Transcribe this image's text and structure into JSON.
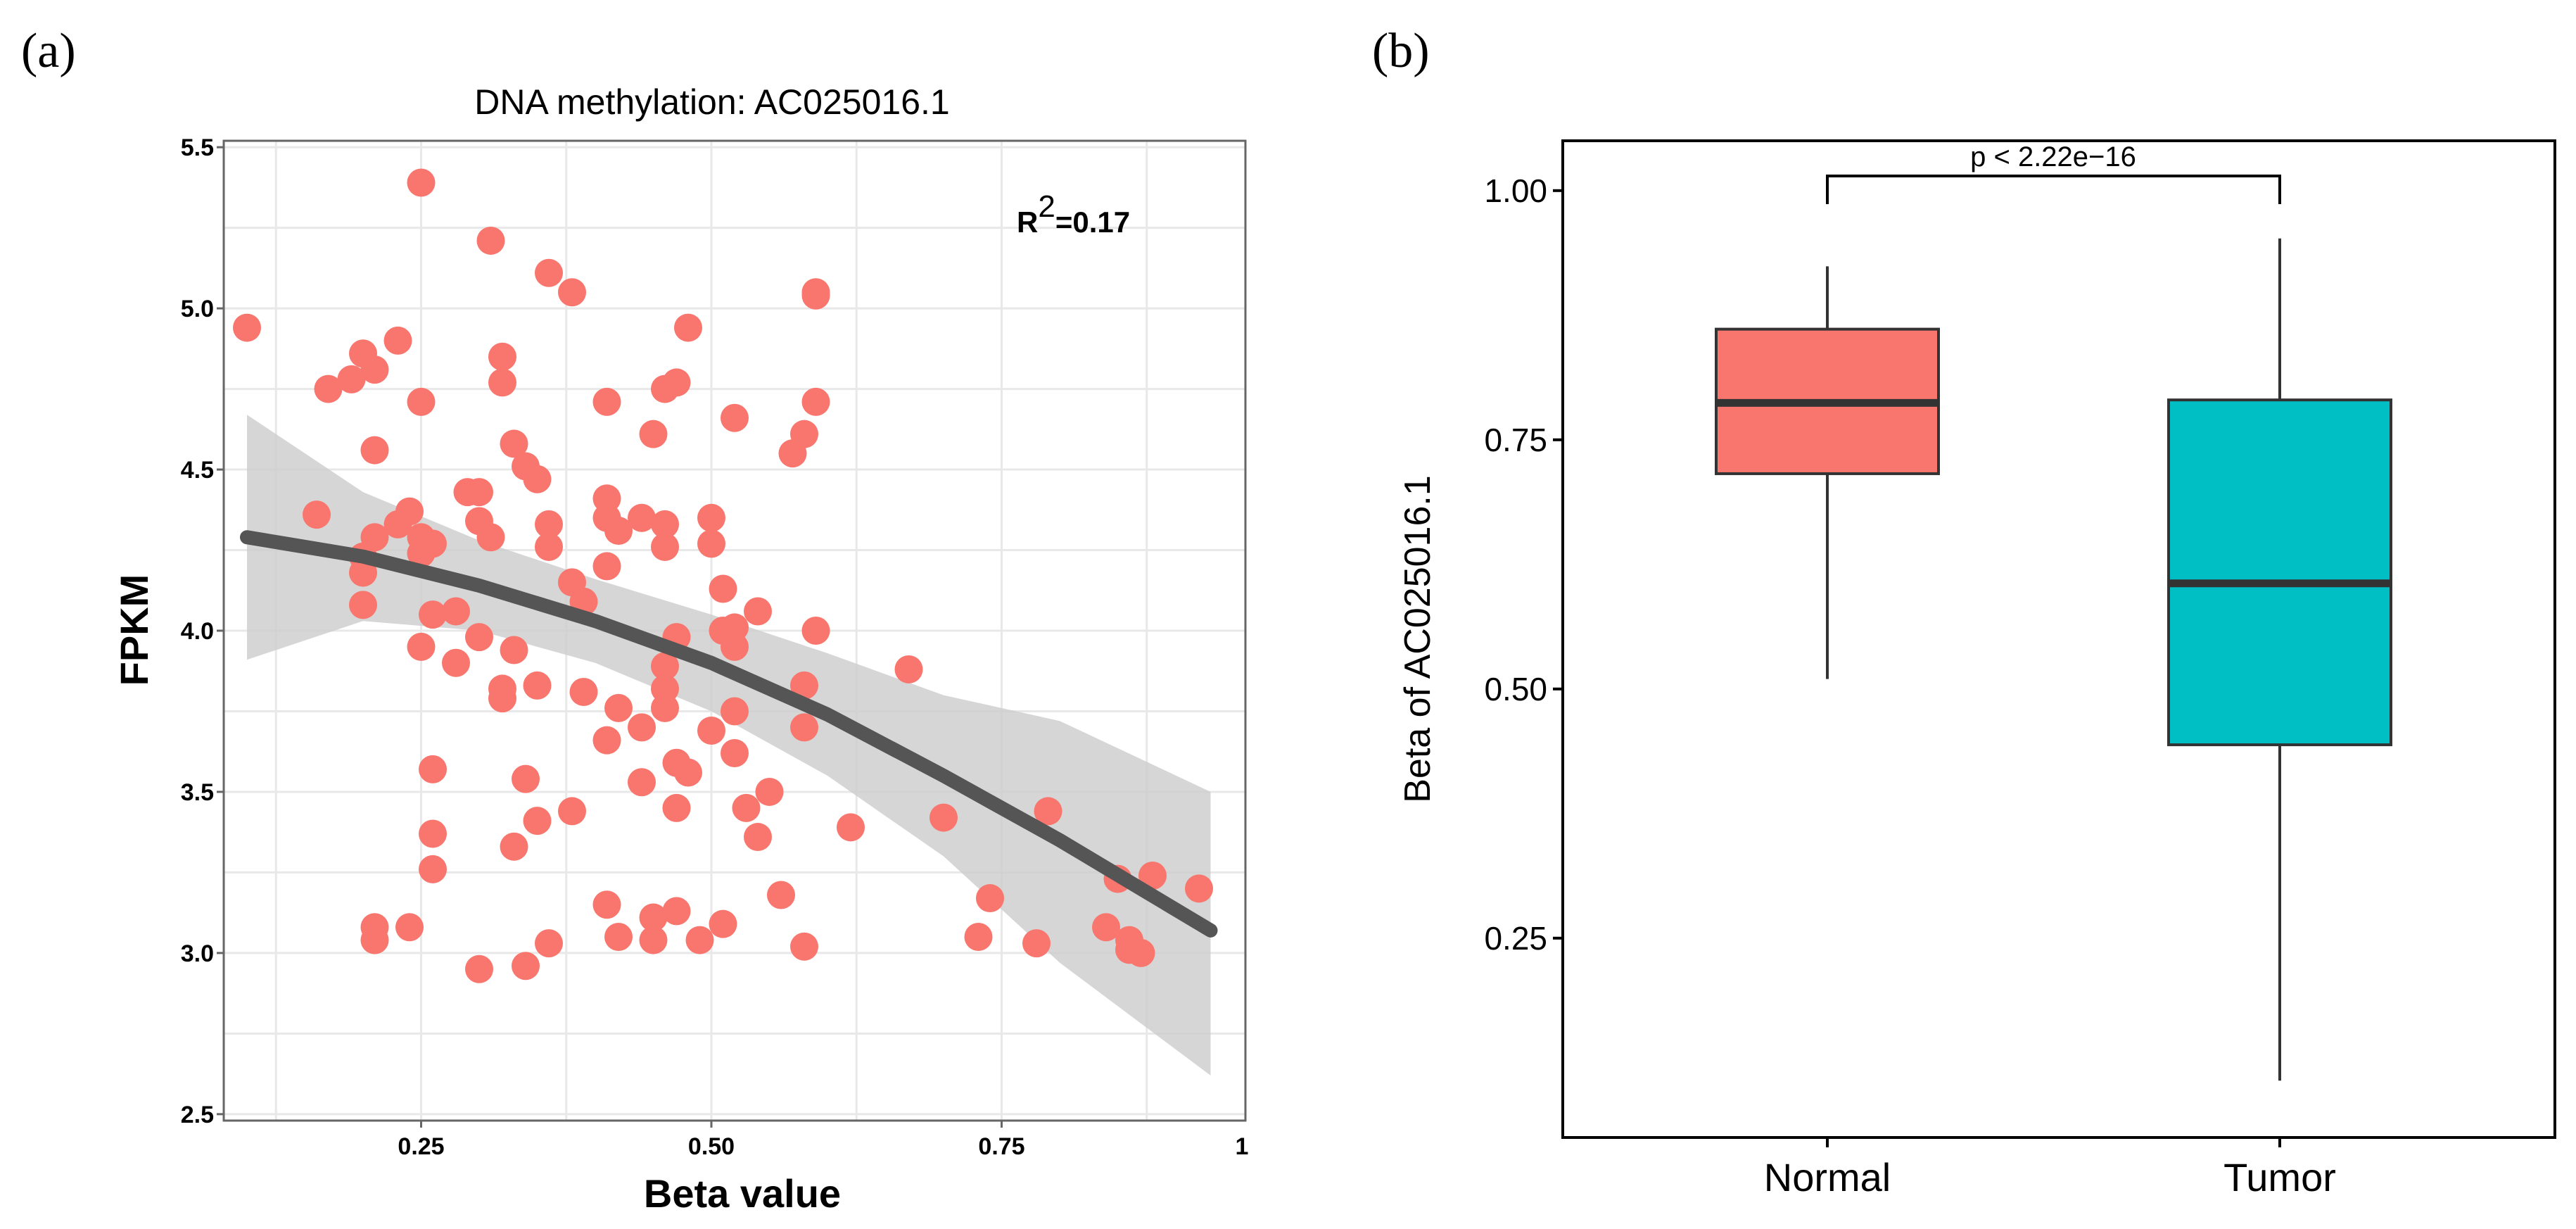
{
  "panels": {
    "a": {
      "label": "(a)"
    },
    "b": {
      "label": "(b)"
    }
  },
  "chart_data": [
    {
      "type": "scatter",
      "title": "DNA methylation: AC025016.1",
      "xlabel": "Beta value",
      "ylabel": "FPKM",
      "xlim": [
        0.08,
        0.96
      ],
      "ylim": [
        2.48,
        5.52
      ],
      "xticks": [
        0.25,
        0.5,
        0.75,
        1
      ],
      "xtick_labels": [
        "0.25",
        "0.50",
        "0.75",
        "1"
      ],
      "yticks": [
        2.5,
        3.0,
        3.5,
        4.0,
        4.5,
        5.0,
        5.5
      ],
      "ytick_labels": [
        "2.5",
        "3.0",
        "3.5",
        "4.0",
        "4.5",
        "5.0",
        "5.5"
      ],
      "annotation": {
        "prefix": "R",
        "sup": "2",
        "value": "=0.17"
      },
      "point_color": "#F8766D",
      "fit_color": "#555555",
      "band_color": "#CCCCCC",
      "points": [
        [
          0.1,
          4.94
        ],
        [
          0.16,
          4.36
        ],
        [
          0.17,
          4.75
        ],
        [
          0.19,
          4.78
        ],
        [
          0.2,
          4.86
        ],
        [
          0.21,
          4.81
        ],
        [
          0.23,
          4.9
        ],
        [
          0.21,
          4.56
        ],
        [
          0.25,
          4.71
        ],
        [
          0.25,
          5.39
        ],
        [
          0.2,
          4.23
        ],
        [
          0.2,
          4.18
        ],
        [
          0.2,
          4.08
        ],
        [
          0.21,
          4.29
        ],
        [
          0.23,
          4.33
        ],
        [
          0.24,
          4.37
        ],
        [
          0.25,
          4.29
        ],
        [
          0.26,
          4.27
        ],
        [
          0.25,
          4.24
        ],
        [
          0.26,
          4.05
        ],
        [
          0.28,
          4.06
        ],
        [
          0.25,
          3.95
        ],
        [
          0.28,
          3.9
        ],
        [
          0.29,
          4.43
        ],
        [
          0.3,
          4.43
        ],
        [
          0.3,
          4.34
        ],
        [
          0.31,
          4.29
        ],
        [
          0.3,
          3.98
        ],
        [
          0.31,
          5.21
        ],
        [
          0.32,
          4.85
        ],
        [
          0.32,
          4.77
        ],
        [
          0.33,
          4.58
        ],
        [
          0.26,
          3.57
        ],
        [
          0.26,
          3.37
        ],
        [
          0.26,
          3.26
        ],
        [
          0.21,
          3.08
        ],
        [
          0.21,
          3.04
        ],
        [
          0.24,
          3.08
        ],
        [
          0.3,
          2.95
        ],
        [
          0.32,
          3.82
        ],
        [
          0.32,
          3.79
        ],
        [
          0.33,
          3.94
        ],
        [
          0.34,
          4.51
        ],
        [
          0.35,
          4.47
        ],
        [
          0.36,
          4.26
        ],
        [
          0.36,
          4.33
        ],
        [
          0.36,
          5.11
        ],
        [
          0.38,
          5.05
        ],
        [
          0.35,
          3.83
        ],
        [
          0.34,
          3.54
        ],
        [
          0.35,
          3.41
        ],
        [
          0.33,
          3.33
        ],
        [
          0.36,
          3.03
        ],
        [
          0.34,
          2.96
        ],
        [
          0.38,
          4.15
        ],
        [
          0.39,
          4.09
        ],
        [
          0.39,
          3.81
        ],
        [
          0.38,
          3.44
        ],
        [
          0.41,
          4.71
        ],
        [
          0.41,
          4.41
        ],
        [
          0.41,
          4.35
        ],
        [
          0.42,
          4.31
        ],
        [
          0.41,
          4.2
        ],
        [
          0.42,
          3.76
        ],
        [
          0.41,
          3.66
        ],
        [
          0.41,
          3.15
        ],
        [
          0.42,
          3.05
        ],
        [
          0.44,
          4.35
        ],
        [
          0.45,
          4.61
        ],
        [
          0.46,
          4.75
        ],
        [
          0.47,
          4.77
        ],
        [
          0.48,
          4.94
        ],
        [
          0.46,
          4.33
        ],
        [
          0.46,
          4.26
        ],
        [
          0.47,
          3.98
        ],
        [
          0.46,
          3.89
        ],
        [
          0.46,
          3.82
        ],
        [
          0.44,
          3.7
        ],
        [
          0.46,
          3.76
        ],
        [
          0.47,
          3.59
        ],
        [
          0.44,
          3.53
        ],
        [
          0.48,
          3.56
        ],
        [
          0.47,
          3.45
        ],
        [
          0.45,
          3.11
        ],
        [
          0.47,
          3.13
        ],
        [
          0.45,
          3.04
        ],
        [
          0.49,
          3.04
        ],
        [
          0.51,
          3.09
        ],
        [
          0.5,
          4.35
        ],
        [
          0.5,
          4.27
        ],
        [
          0.51,
          4.13
        ],
        [
          0.51,
          4.0
        ],
        [
          0.52,
          4.01
        ],
        [
          0.52,
          3.95
        ],
        [
          0.52,
          4.66
        ],
        [
          0.54,
          4.06
        ],
        [
          0.52,
          3.75
        ],
        [
          0.5,
          3.69
        ],
        [
          0.52,
          3.62
        ],
        [
          0.53,
          3.45
        ],
        [
          0.54,
          3.36
        ],
        [
          0.55,
          3.5
        ],
        [
          0.56,
          3.18
        ],
        [
          0.57,
          4.55
        ],
        [
          0.58,
          4.61
        ],
        [
          0.59,
          4.71
        ],
        [
          0.59,
          5.04
        ],
        [
          0.59,
          5.05
        ],
        [
          0.58,
          3.83
        ],
        [
          0.58,
          3.7
        ],
        [
          0.58,
          3.02
        ],
        [
          0.59,
          4.0
        ],
        [
          0.62,
          3.39
        ],
        [
          0.67,
          3.88
        ],
        [
          0.7,
          3.42
        ],
        [
          0.73,
          3.05
        ],
        [
          0.74,
          3.17
        ],
        [
          0.78,
          3.03
        ],
        [
          0.79,
          3.44
        ],
        [
          0.84,
          3.08
        ],
        [
          0.85,
          3.23
        ],
        [
          0.86,
          3.01
        ],
        [
          0.86,
          3.04
        ],
        [
          0.87,
          3.0
        ],
        [
          0.88,
          3.24
        ],
        [
          0.92,
          3.2
        ]
      ],
      "fit": {
        "x": [
          0.1,
          0.2,
          0.3,
          0.4,
          0.5,
          0.6,
          0.7,
          0.8,
          0.93
        ],
        "y": [
          4.29,
          4.23,
          4.14,
          4.03,
          3.9,
          3.74,
          3.55,
          3.35,
          3.07
        ],
        "lower": [
          3.91,
          4.03,
          4.0,
          3.9,
          3.75,
          3.55,
          3.3,
          2.97,
          2.62
        ],
        "upper": [
          4.67,
          4.43,
          4.28,
          4.16,
          4.05,
          3.93,
          3.8,
          3.72,
          3.5
        ]
      }
    },
    {
      "type": "box",
      "xlabel": "",
      "ylabel": "Beta of AC025016.1",
      "ylim": [
        0.05,
        1.05
      ],
      "yticks": [
        0.25,
        0.5,
        0.75,
        1.0
      ],
      "ytick_labels": [
        "0.25",
        "0.50",
        "0.75",
        "1.00"
      ],
      "categories": [
        "Normal",
        "Tumor"
      ],
      "annotation": "p < 2.22e−16",
      "boxes": [
        {
          "name": "Normal",
          "color": "#F8766D",
          "min": 0.51,
          "q1": 0.716,
          "median": 0.787,
          "q3": 0.861,
          "max": 0.924
        },
        {
          "name": "Tumor",
          "color": "#00BFC4",
          "min": 0.107,
          "q1": 0.444,
          "median": 0.606,
          "q3": 0.79,
          "max": 0.952
        }
      ]
    }
  ]
}
